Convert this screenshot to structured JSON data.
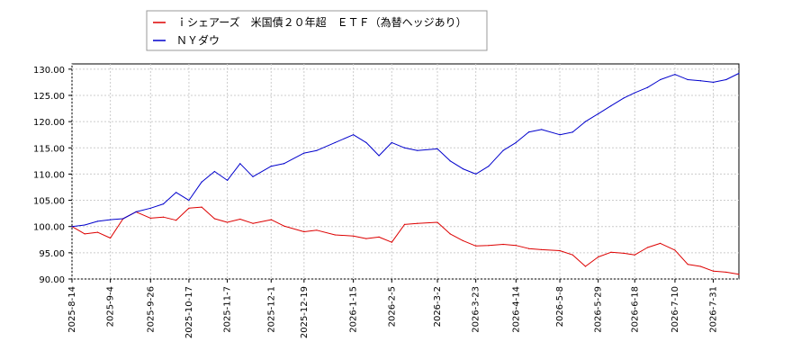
{
  "chart_data": {
    "type": "line",
    "title": "",
    "xlabel": "",
    "ylabel": "",
    "ylim": [
      90,
      131
    ],
    "grid": true,
    "legend_position": "top-left",
    "x_tick_labels": [
      "2025-8-14",
      "2025-9-4",
      "2025-9-26",
      "2025-10-17",
      "2025-11-7",
      "2025-12-1",
      "2025-12-19",
      "2026-1-15",
      "2026-2-5",
      "2026-3-2",
      "2026-3-23",
      "2026-4-14",
      "2026-5-8",
      "2026-5-29",
      "2026-6-18",
      "2026-7-10",
      "2026-7-31"
    ],
    "y_tick_labels": [
      "90.00",
      "95.00",
      "100.00",
      "105.00",
      "110.00",
      "115.00",
      "120.00",
      "125.00",
      "130.00"
    ],
    "y_ticks": [
      90,
      95,
      100,
      105,
      110,
      115,
      120,
      125,
      130
    ],
    "series": [
      {
        "name": "ｉシェアーズ　米国債２０年超　ＥＴＦ（為替ヘッジあり）",
        "color": "#dd0000",
        "x": [
          "2025-8-14",
          "2025-8-21",
          "2025-8-28",
          "2025-9-4",
          "2025-9-11",
          "2025-9-18",
          "2025-9-26",
          "2025-10-3",
          "2025-10-10",
          "2025-10-17",
          "2025-10-24",
          "2025-10-31",
          "2025-11-7",
          "2025-11-14",
          "2025-11-21",
          "2025-12-1",
          "2025-12-8",
          "2025-12-19",
          "2025-12-26",
          "2026-1-5",
          "2026-1-15",
          "2026-1-22",
          "2026-1-29",
          "2026-2-5",
          "2026-2-12",
          "2026-2-19",
          "2026-3-2",
          "2026-3-9",
          "2026-3-16",
          "2026-3-23",
          "2026-3-30",
          "2026-4-7",
          "2026-4-14",
          "2026-4-21",
          "2026-4-28",
          "2026-5-8",
          "2026-5-15",
          "2026-5-22",
          "2026-5-29",
          "2026-6-5",
          "2026-6-12",
          "2026-6-18",
          "2026-6-25",
          "2026-7-2",
          "2026-7-10",
          "2026-7-17",
          "2026-7-24",
          "2026-7-31",
          "2026-8-7",
          "2026-8-14"
        ],
        "values": [
          100.0,
          98.6,
          98.9,
          97.8,
          101.5,
          102.8,
          101.6,
          101.8,
          101.2,
          103.5,
          103.7,
          101.5,
          100.8,
          101.4,
          100.6,
          101.3,
          100.1,
          99.0,
          99.3,
          98.4,
          98.2,
          97.7,
          98.0,
          97.0,
          100.4,
          100.6,
          100.8,
          98.6,
          97.3,
          96.3,
          96.4,
          96.6,
          96.4,
          95.8,
          95.6,
          95.4,
          94.6,
          92.4,
          94.2,
          95.1,
          94.9,
          94.6,
          96.0,
          96.8,
          95.5,
          92.8,
          92.4,
          91.5,
          91.3,
          90.9
        ]
      },
      {
        "name": "ＮＹダウ",
        "color": "#0000cc",
        "x": [
          "2025-8-14",
          "2025-8-21",
          "2025-8-28",
          "2025-9-4",
          "2025-9-11",
          "2025-9-18",
          "2025-9-26",
          "2025-10-3",
          "2025-10-10",
          "2025-10-17",
          "2025-10-24",
          "2025-10-31",
          "2025-11-7",
          "2025-11-14",
          "2025-11-21",
          "2025-12-1",
          "2025-12-8",
          "2025-12-19",
          "2025-12-26",
          "2026-1-5",
          "2026-1-15",
          "2026-1-22",
          "2026-1-29",
          "2026-2-5",
          "2026-2-12",
          "2026-2-19",
          "2026-3-2",
          "2026-3-9",
          "2026-3-16",
          "2026-3-23",
          "2026-3-30",
          "2026-4-7",
          "2026-4-14",
          "2026-4-21",
          "2026-4-28",
          "2026-5-8",
          "2026-5-15",
          "2026-5-22",
          "2026-5-29",
          "2026-6-5",
          "2026-6-12",
          "2026-6-18",
          "2026-6-25",
          "2026-7-2",
          "2026-7-10",
          "2026-7-17",
          "2026-7-24",
          "2026-7-31",
          "2026-8-7",
          "2026-8-14"
        ],
        "values": [
          100.0,
          100.3,
          101.0,
          101.3,
          101.5,
          102.8,
          103.5,
          104.3,
          106.5,
          105.0,
          108.5,
          110.5,
          108.8,
          112.0,
          109.5,
          111.5,
          112.0,
          114.0,
          114.5,
          116.0,
          117.5,
          116.0,
          113.5,
          116.0,
          115.0,
          114.5,
          114.8,
          112.5,
          111.0,
          110.0,
          111.5,
          114.5,
          116.0,
          118.0,
          118.5,
          117.5,
          118.0,
          120.0,
          121.5,
          123.0,
          124.5,
          125.5,
          126.5,
          128.0,
          129.0,
          128.0,
          127.8,
          127.5,
          128.0,
          129.2
        ]
      }
    ]
  }
}
